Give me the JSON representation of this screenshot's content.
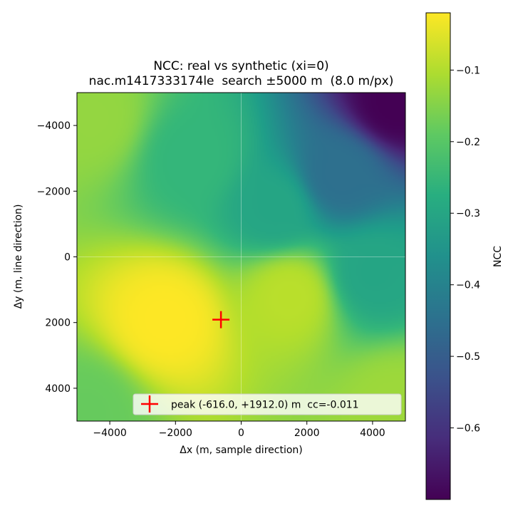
{
  "chart_data": {
    "type": "heatmap",
    "title": "NCC: real vs synthetic (xi=0)",
    "subtitle": "nac.m1417333174le  search ±5000 m  (8.0 m/px)",
    "xlabel": "Δx (m, sample direction)",
    "ylabel": "Δy (m, line direction)",
    "xlim": [
      -5000,
      5000
    ],
    "ylim": [
      5000,
      -5000
    ],
    "x_ticks": [
      -4000,
      -2000,
      0,
      2000,
      4000
    ],
    "y_ticks": [
      -4000,
      -2000,
      0,
      2000,
      4000
    ],
    "x_tick_labels": [
      "−4000",
      "−2000",
      "0",
      "2000",
      "4000"
    ],
    "y_tick_labels": [
      "−4000",
      "−2000",
      "0",
      "2000",
      "4000"
    ],
    "grid": "crosshair lines at x=0 and y=0",
    "colormap": "viridis",
    "colorbar": {
      "label": "NCC",
      "range": [
        -0.7,
        -0.02
      ],
      "ticks": [
        -0.1,
        -0.2,
        -0.3,
        -0.4,
        -0.5,
        -0.6
      ],
      "tick_labels": [
        "−0.1",
        "−0.2",
        "−0.3",
        "−0.4",
        "−0.5",
        "−0.6"
      ]
    },
    "surface_samples": [
      {
        "x": -2300,
        "y": 1900,
        "ncc": -0.02
      },
      {
        "x": 1500,
        "y": 1200,
        "ncc": -0.09
      },
      {
        "x": -4500,
        "y": -4200,
        "ncc": -0.13
      },
      {
        "x": -1500,
        "y": -3000,
        "ncc": -0.25
      },
      {
        "x": 3000,
        "y": -2500,
        "ncc": -0.45
      },
      {
        "x": 4700,
        "y": -4700,
        "ncc": -0.7
      },
      {
        "x": 4000,
        "y": 500,
        "ncc": -0.3
      },
      {
        "x": 4700,
        "y": 4500,
        "ncc": -0.12
      },
      {
        "x": -4700,
        "y": 4700,
        "ncc": -0.18
      },
      {
        "x": 1000,
        "y": -1500,
        "ncc": -0.3
      }
    ],
    "peak": {
      "x": -616.0,
      "y": 1912.0,
      "ncc": -0.011,
      "marker": "+",
      "color": "#ff0000"
    },
    "legend": {
      "position": "lower-right",
      "label": "peak (-616.0, +1912.0) m  cc=-0.011"
    }
  }
}
